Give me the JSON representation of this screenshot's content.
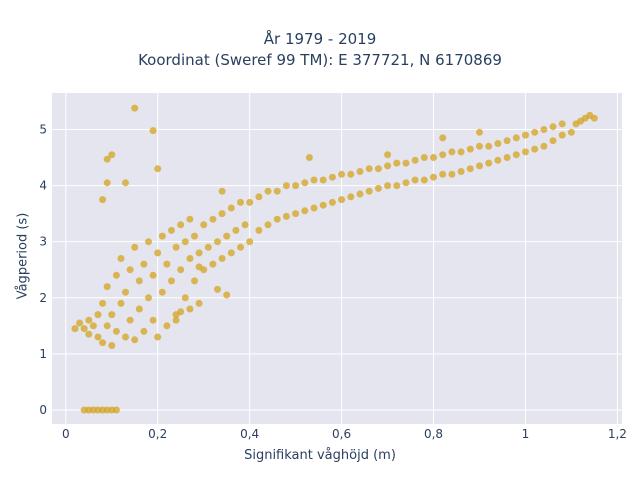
{
  "chart_data": {
    "type": "scatter",
    "title": "År 1979 - 2019",
    "subtitle": "Koordinat (Sweref 99 TM): E 377721, N 6170869",
    "xlabel": "Signifikant våghöjd (m)",
    "ylabel": "Vågperiod (s)",
    "xlim": [
      -0.03,
      1.21
    ],
    "ylim": [
      -0.25,
      5.65
    ],
    "xticks": [
      0,
      0.2,
      0.4,
      0.6,
      0.8,
      1,
      1.2
    ],
    "xtick_labels": [
      "0",
      "0,2",
      "0,4",
      "0,6",
      "0,8",
      "1",
      "1,2"
    ],
    "yticks": [
      0,
      1,
      2,
      3,
      4,
      5
    ],
    "ytick_labels": [
      "0",
      "1",
      "2",
      "3",
      "4",
      "5"
    ],
    "grid": true,
    "legend": "none",
    "marker_color": "#d4a31f",
    "background_color": "#e5e5ef",
    "series": [
      {
        "points": [
          [
            0.04,
            0.0
          ],
          [
            0.05,
            0.0
          ],
          [
            0.06,
            0.0
          ],
          [
            0.07,
            0.0
          ],
          [
            0.08,
            0.0
          ],
          [
            0.09,
            0.0
          ],
          [
            0.1,
            0.0
          ],
          [
            0.11,
            0.0
          ],
          [
            0.02,
            1.45
          ],
          [
            0.03,
            1.55
          ],
          [
            0.04,
            1.45
          ],
          [
            0.05,
            1.35
          ],
          [
            0.05,
            1.6
          ],
          [
            0.06,
            1.5
          ],
          [
            0.07,
            1.7
          ],
          [
            0.07,
            1.3
          ],
          [
            0.08,
            1.9
          ],
          [
            0.08,
            1.2
          ],
          [
            0.09,
            1.5
          ],
          [
            0.09,
            2.2
          ],
          [
            0.1,
            1.15
          ],
          [
            0.1,
            1.7
          ],
          [
            0.11,
            2.4
          ],
          [
            0.11,
            1.4
          ],
          [
            0.12,
            1.9
          ],
          [
            0.12,
            2.7
          ],
          [
            0.13,
            1.3
          ],
          [
            0.13,
            2.1
          ],
          [
            0.14,
            1.6
          ],
          [
            0.14,
            2.5
          ],
          [
            0.15,
            1.25
          ],
          [
            0.15,
            2.9
          ],
          [
            0.16,
            1.8
          ],
          [
            0.16,
            2.3
          ],
          [
            0.17,
            1.4
          ],
          [
            0.17,
            2.6
          ],
          [
            0.18,
            2.0
          ],
          [
            0.18,
            3.0
          ],
          [
            0.19,
            1.6
          ],
          [
            0.19,
            2.4
          ],
          [
            0.2,
            1.3
          ],
          [
            0.2,
            2.8
          ],
          [
            0.21,
            2.1
          ],
          [
            0.21,
            3.1
          ],
          [
            0.22,
            1.5
          ],
          [
            0.22,
            2.6
          ],
          [
            0.23,
            2.3
          ],
          [
            0.23,
            3.2
          ],
          [
            0.24,
            1.7
          ],
          [
            0.24,
            2.9
          ],
          [
            0.25,
            2.5
          ],
          [
            0.25,
            3.3
          ],
          [
            0.26,
            2.0
          ],
          [
            0.26,
            3.0
          ],
          [
            0.27,
            2.7
          ],
          [
            0.27,
            3.4
          ],
          [
            0.28,
            2.3
          ],
          [
            0.28,
            3.1
          ],
          [
            0.29,
            2.8
          ],
          [
            0.3,
            2.5
          ],
          [
            0.3,
            3.3
          ],
          [
            0.31,
            2.9
          ],
          [
            0.32,
            2.6
          ],
          [
            0.32,
            3.4
          ],
          [
            0.33,
            3.0
          ],
          [
            0.34,
            2.7
          ],
          [
            0.34,
            3.5
          ],
          [
            0.35,
            3.1
          ],
          [
            0.36,
            2.8
          ],
          [
            0.36,
            3.6
          ],
          [
            0.37,
            3.2
          ],
          [
            0.38,
            2.9
          ],
          [
            0.38,
            3.7
          ],
          [
            0.39,
            3.3
          ],
          [
            0.4,
            3.0
          ],
          [
            0.4,
            3.7
          ],
          [
            0.42,
            3.2
          ],
          [
            0.42,
            3.8
          ],
          [
            0.44,
            3.3
          ],
          [
            0.44,
            3.9
          ],
          [
            0.46,
            3.4
          ],
          [
            0.46,
            3.9
          ],
          [
            0.48,
            3.45
          ],
          [
            0.48,
            4.0
          ],
          [
            0.5,
            3.5
          ],
          [
            0.5,
            4.0
          ],
          [
            0.52,
            3.55
          ],
          [
            0.52,
            4.05
          ],
          [
            0.54,
            3.6
          ],
          [
            0.54,
            4.1
          ],
          [
            0.56,
            3.65
          ],
          [
            0.56,
            4.1
          ],
          [
            0.58,
            3.7
          ],
          [
            0.58,
            4.15
          ],
          [
            0.6,
            3.75
          ],
          [
            0.6,
            4.2
          ],
          [
            0.62,
            3.8
          ],
          [
            0.62,
            4.2
          ],
          [
            0.64,
            3.85
          ],
          [
            0.64,
            4.25
          ],
          [
            0.66,
            3.9
          ],
          [
            0.66,
            4.3
          ],
          [
            0.68,
            3.95
          ],
          [
            0.68,
            4.3
          ],
          [
            0.7,
            4.0
          ],
          [
            0.7,
            4.35
          ],
          [
            0.72,
            4.0
          ],
          [
            0.72,
            4.4
          ],
          [
            0.74,
            4.05
          ],
          [
            0.74,
            4.4
          ],
          [
            0.76,
            4.1
          ],
          [
            0.76,
            4.45
          ],
          [
            0.78,
            4.1
          ],
          [
            0.78,
            4.5
          ],
          [
            0.8,
            4.15
          ],
          [
            0.8,
            4.5
          ],
          [
            0.82,
            4.2
          ],
          [
            0.82,
            4.55
          ],
          [
            0.84,
            4.2
          ],
          [
            0.84,
            4.6
          ],
          [
            0.86,
            4.25
          ],
          [
            0.86,
            4.6
          ],
          [
            0.88,
            4.3
          ],
          [
            0.88,
            4.65
          ],
          [
            0.9,
            4.35
          ],
          [
            0.9,
            4.7
          ],
          [
            0.92,
            4.4
          ],
          [
            0.92,
            4.7
          ],
          [
            0.94,
            4.45
          ],
          [
            0.94,
            4.75
          ],
          [
            0.96,
            4.5
          ],
          [
            0.96,
            4.8
          ],
          [
            0.98,
            4.55
          ],
          [
            0.98,
            4.85
          ],
          [
            1.0,
            4.6
          ],
          [
            1.0,
            4.9
          ],
          [
            1.02,
            4.65
          ],
          [
            1.02,
            4.95
          ],
          [
            1.04,
            4.7
          ],
          [
            1.04,
            5.0
          ],
          [
            1.06,
            4.8
          ],
          [
            1.06,
            5.05
          ],
          [
            1.08,
            4.9
          ],
          [
            1.08,
            5.1
          ],
          [
            1.1,
            4.95
          ],
          [
            1.11,
            5.1
          ],
          [
            1.12,
            5.15
          ],
          [
            1.13,
            5.2
          ],
          [
            1.14,
            5.25
          ],
          [
            1.15,
            5.2
          ],
          [
            0.15,
            5.38
          ],
          [
            0.19,
            4.98
          ],
          [
            0.09,
            4.47
          ],
          [
            0.1,
            4.55
          ],
          [
            0.09,
            4.05
          ],
          [
            0.13,
            4.05
          ],
          [
            0.08,
            3.75
          ],
          [
            0.2,
            4.3
          ],
          [
            0.53,
            4.5
          ],
          [
            0.82,
            4.85
          ],
          [
            0.9,
            4.95
          ],
          [
            0.7,
            4.55
          ],
          [
            0.34,
            3.9
          ],
          [
            0.29,
            2.55
          ],
          [
            0.33,
            2.15
          ],
          [
            0.35,
            2.05
          ],
          [
            0.27,
            1.8
          ],
          [
            0.25,
            1.75
          ],
          [
            0.24,
            1.6
          ],
          [
            0.29,
            1.9
          ]
        ]
      }
    ]
  }
}
